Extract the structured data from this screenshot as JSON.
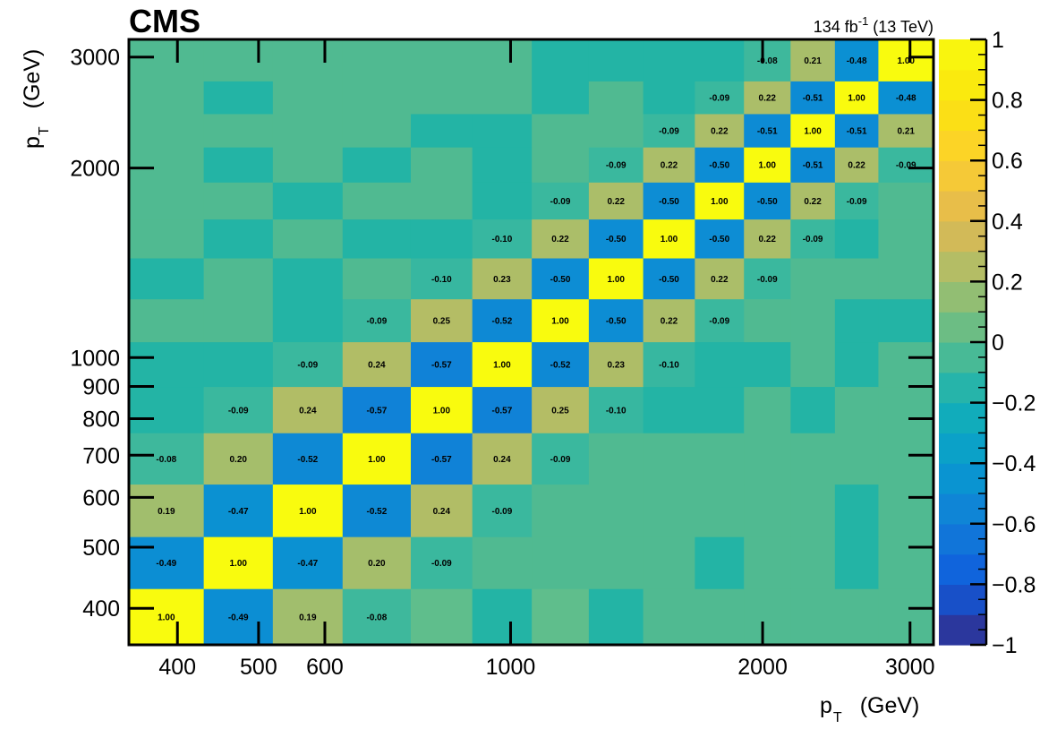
{
  "header": {
    "experiment": "CMS",
    "lumi_value": "134 fb",
    "lumi_exponent": "-1",
    "lumi_energy": " (13 TeV)"
  },
  "chart_data": {
    "type": "heatmap",
    "title": "",
    "bin_edges": [
      350,
      430,
      520,
      630,
      760,
      900,
      1060,
      1240,
      1440,
      1660,
      1900,
      2160,
      2440,
      2750,
      3200
    ],
    "xlabel": "p",
    "xlabel_sub": "T",
    "xlabel_unit": "(GeV)",
    "ylabel": "p",
    "ylabel_sub": "T",
    "ylabel_unit": "(GeV)",
    "xlim": [
      350,
      3200
    ],
    "ylim": [
      350,
      3200
    ],
    "x_scale": "log",
    "y_scale": "log",
    "x_ticks": [
      400,
      500,
      600,
      1000,
      2000,
      3000
    ],
    "y_ticks": [
      400,
      500,
      600,
      700,
      800,
      900,
      1000,
      2000,
      3000
    ],
    "y_tick_labels": [
      "400",
      "500",
      "600",
      "700",
      "800",
      "900",
      "1000",
      "2000",
      "3000"
    ],
    "x_tick_labels": [
      "400",
      "500",
      "600",
      "1000",
      "2000",
      "3000"
    ],
    "zlim": [
      -1,
      1
    ],
    "colorbar_ticks": [
      -1,
      -0.8,
      -0.6,
      -0.4,
      -0.2,
      0,
      0.2,
      0.4,
      0.6,
      0.8,
      1
    ],
    "colorbar_tick_labels": [
      "−1",
      "−0.8",
      "−0.6",
      "−0.4",
      "−0.2",
      "0",
      "0.2",
      "0.4",
      "0.6",
      "0.8",
      "1"
    ],
    "matrix": [
      [
        1.0,
        -0.49,
        0.19,
        -0.08,
        0,
        0,
        0,
        0,
        0,
        0,
        0,
        0,
        0,
        0
      ],
      [
        -0.49,
        1.0,
        -0.47,
        0.2,
        -0.09,
        0,
        0,
        0,
        0,
        0,
        0,
        0,
        0,
        0
      ],
      [
        0.19,
        -0.47,
        1.0,
        -0.52,
        0.24,
        -0.09,
        0,
        0,
        0,
        0,
        0,
        0,
        0,
        0
      ],
      [
        -0.08,
        0.2,
        -0.52,
        1.0,
        -0.57,
        0.24,
        -0.09,
        0,
        0,
        0,
        0,
        0,
        0,
        0
      ],
      [
        0,
        -0.09,
        0.24,
        -0.57,
        1.0,
        -0.57,
        0.25,
        -0.1,
        0,
        0,
        0,
        0,
        0,
        0
      ],
      [
        0,
        0,
        -0.09,
        0.24,
        -0.57,
        1.0,
        -0.52,
        0.23,
        -0.1,
        0,
        0,
        0,
        0,
        0
      ],
      [
        0,
        0,
        0,
        -0.09,
        0.25,
        -0.52,
        1.0,
        -0.5,
        0.22,
        -0.09,
        0,
        0,
        0,
        0
      ],
      [
        0,
        0,
        0,
        0,
        -0.1,
        0.23,
        -0.5,
        1.0,
        -0.5,
        0.22,
        -0.09,
        0,
        0,
        0
      ],
      [
        0,
        0,
        0,
        0,
        0,
        -0.1,
        0.22,
        -0.5,
        1.0,
        -0.5,
        0.22,
        -0.09,
        0,
        0
      ],
      [
        0,
        0,
        0,
        0,
        0,
        0,
        -0.09,
        0.22,
        -0.5,
        1.0,
        -0.5,
        0.22,
        -0.09,
        0
      ],
      [
        0,
        0,
        0,
        0,
        0,
        0,
        0,
        -0.09,
        0.22,
        -0.5,
        1.0,
        -0.51,
        0.22,
        -0.09
      ],
      [
        0,
        0,
        0,
        0,
        0,
        0,
        0,
        0,
        -0.09,
        0.22,
        -0.51,
        1.0,
        -0.51,
        0.21
      ],
      [
        0,
        0,
        0,
        0,
        0,
        0,
        0,
        0,
        0,
        -0.09,
        0.22,
        -0.51,
        1.0,
        -0.48
      ],
      [
        0,
        0,
        0,
        0,
        0,
        0,
        0,
        0,
        0,
        0,
        -0.08,
        0.21,
        -0.48,
        1.0
      ]
    ],
    "row0_order": "bottom row first (lowest pT)",
    "shown_labels_note": "labels drawn only where nonzero",
    "zero_fill_pattern": [
      [
        0,
        0,
        0,
        0,
        1,
        -1,
        1,
        -1,
        0,
        0,
        0,
        0,
        0,
        0
      ],
      [
        0,
        0,
        0,
        0,
        0,
        0,
        0,
        0,
        0,
        -1,
        0,
        0,
        -1,
        0
      ],
      [
        0,
        0,
        0,
        0,
        0,
        0,
        0,
        0,
        0,
        0,
        0,
        0,
        -1,
        0
      ],
      [
        0,
        0,
        0,
        0,
        0,
        0,
        0,
        0,
        0,
        0,
        0,
        0,
        0,
        0
      ],
      [
        -1,
        0,
        0,
        0,
        0,
        0,
        0,
        0,
        -1,
        -1,
        0,
        -1,
        0,
        0
      ],
      [
        -1,
        -1,
        0,
        0,
        0,
        0,
        0,
        0,
        0,
        -1,
        -1,
        0,
        -1,
        0
      ],
      [
        0,
        0,
        -1,
        0,
        0,
        0,
        0,
        0,
        0,
        0,
        0,
        0,
        -1,
        -1
      ],
      [
        -1,
        0,
        -1,
        0,
        0,
        0,
        0,
        0,
        0,
        0,
        -1,
        0,
        0,
        0
      ],
      [
        0,
        -1,
        0,
        -1,
        -1,
        0,
        0,
        0,
        0,
        0,
        0,
        -1,
        -1,
        0
      ],
      [
        0,
        0,
        -1,
        0,
        0,
        -1,
        -1,
        -1,
        0,
        0,
        0,
        0,
        0,
        0
      ],
      [
        0,
        -1,
        0,
        -1,
        0,
        -1,
        0,
        0,
        0,
        0,
        0,
        0,
        0,
        0
      ],
      [
        0,
        0,
        0,
        0,
        -1,
        -1,
        0,
        0,
        0,
        0,
        0,
        0,
        0,
        0
      ],
      [
        0,
        -1,
        0,
        0,
        0,
        0,
        -1,
        0,
        -1,
        0,
        0,
        0,
        0,
        0
      ],
      [
        0,
        0,
        0,
        0,
        0,
        0,
        -1,
        -1,
        -1,
        -1,
        -1,
        0,
        0,
        0
      ]
    ]
  }
}
